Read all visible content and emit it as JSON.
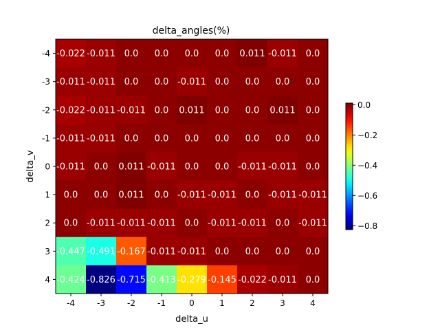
{
  "chart_data": {
    "type": "heatmap",
    "title": "delta_angles(%)",
    "xlabel": "delta_u",
    "ylabel": "delta_v",
    "x_categories": [
      "-4",
      "-3",
      "-2",
      "-1",
      "0",
      "1",
      "2",
      "3",
      "4"
    ],
    "y_categories": [
      "-4",
      "-3",
      "-2",
      "-1",
      "0",
      "1",
      "2",
      "3",
      "4"
    ],
    "colormap": "jet",
    "vmin": -0.826,
    "vmax": 0.011,
    "colorbar_ticks": [
      "0.0",
      "−0.2",
      "−0.4",
      "−0.6",
      "−0.8"
    ],
    "colorbar_tick_values": [
      0.0,
      -0.2,
      -0.4,
      -0.6,
      -0.8
    ],
    "values": [
      [
        -0.022,
        -0.011,
        0.0,
        0.0,
        0.0,
        0.0,
        0.011,
        -0.011,
        0.0
      ],
      [
        -0.011,
        -0.011,
        0.0,
        0.0,
        -0.011,
        0.0,
        0.0,
        0.0,
        0.0
      ],
      [
        -0.022,
        -0.011,
        -0.011,
        0.0,
        0.011,
        0.0,
        0.0,
        0.011,
        0.0
      ],
      [
        -0.011,
        -0.011,
        0.0,
        0.0,
        0.0,
        0.0,
        0.0,
        0.0,
        0.0
      ],
      [
        -0.011,
        0.0,
        0.011,
        -0.011,
        0.0,
        0.0,
        -0.011,
        -0.011,
        0.0
      ],
      [
        0.0,
        0.0,
        0.011,
        0.0,
        -0.011,
        -0.011,
        0.0,
        -0.011,
        -0.011
      ],
      [
        0.0,
        -0.011,
        -0.011,
        -0.011,
        0.0,
        -0.011,
        -0.011,
        0.0,
        -0.011
      ],
      [
        -0.447,
        -0.491,
        -0.167,
        -0.011,
        -0.011,
        0.0,
        0.0,
        0.0,
        0.0
      ],
      [
        -0.424,
        -0.826,
        -0.715,
        -0.413,
        -0.279,
        -0.145,
        -0.022,
        -0.011,
        0.0
      ]
    ],
    "cell_labels": [
      [
        "-0.022",
        "-0.011",
        "0.0",
        "0.0",
        "0.0",
        "0.0",
        "0.011",
        "-0.011",
        "0.0"
      ],
      [
        "-0.011",
        "-0.011",
        "0.0",
        "0.0",
        "-0.011",
        "0.0",
        "0.0",
        "0.0",
        "0.0"
      ],
      [
        "-0.022",
        "-0.011",
        "-0.011",
        "0.0",
        "0.011",
        "0.0",
        "0.0",
        "0.011",
        "0.0"
      ],
      [
        "-0.011",
        "-0.011",
        "0.0",
        "0.0",
        "0.0",
        "0.0",
        "0.0",
        "0.0",
        "0.0"
      ],
      [
        "-0.011",
        "0.0",
        "0.011",
        "-0.011",
        "0.0",
        "0.0",
        "-0.011",
        "-0.011",
        "0.0"
      ],
      [
        "0.0",
        "0.0",
        "0.011",
        "0.0",
        "-0.011",
        "-0.011",
        "0.0",
        "-0.011",
        "-0.011"
      ],
      [
        "0.0",
        "-0.011",
        "-0.011",
        "-0.011",
        "0.0",
        "-0.011",
        "-0.011",
        "0.0",
        "-0.011"
      ],
      [
        "-0.447",
        "-0.491",
        "-0.167",
        "-0.011",
        "-0.011",
        "0.0",
        "0.0",
        "0.0",
        "0.0"
      ],
      [
        "-0.424",
        "-0.826",
        "-0.715",
        "-0.413",
        "-0.279",
        "-0.145",
        "-0.022",
        "-0.011",
        "0.0"
      ]
    ],
    "grid": false,
    "colorbar": "right"
  }
}
